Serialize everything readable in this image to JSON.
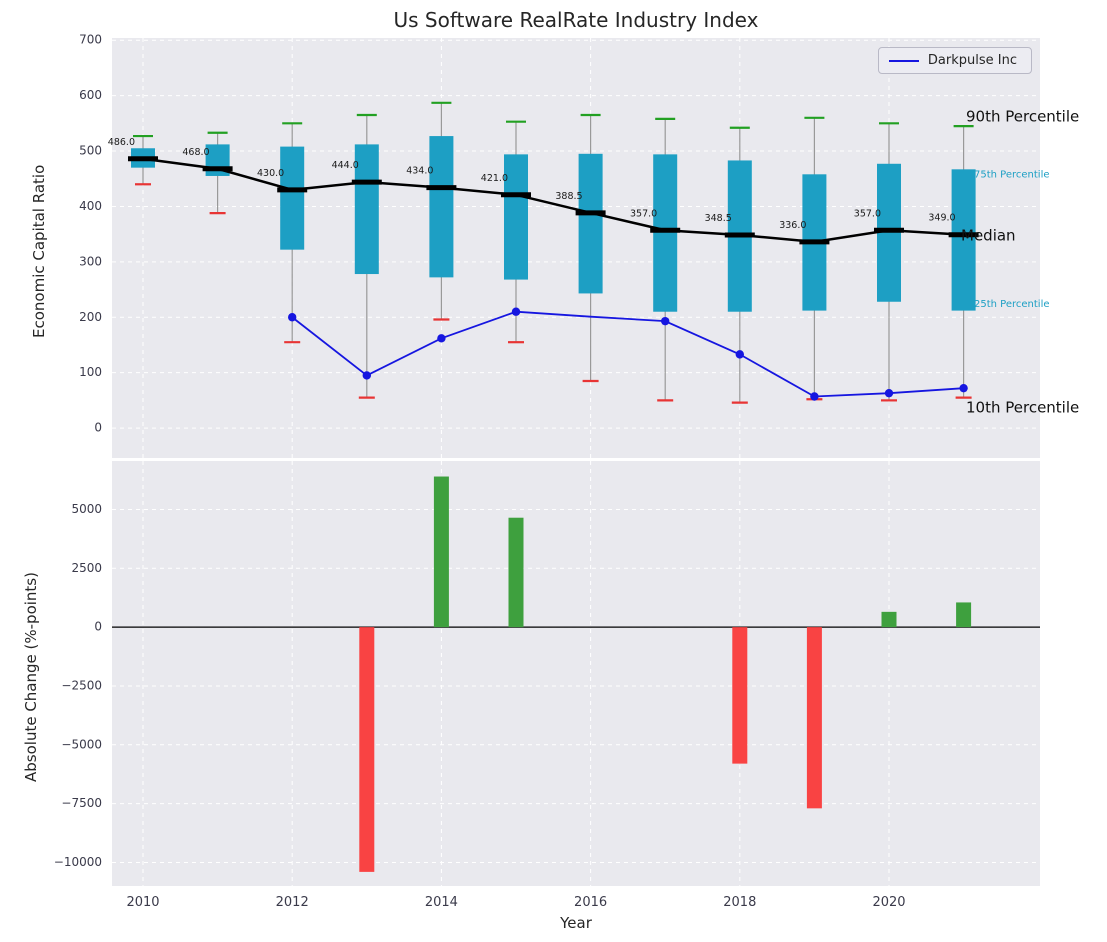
{
  "chart_data": {
    "title": "Us Software RealRate Industry Index",
    "xlabel": "Year",
    "years": [
      2010,
      2011,
      2012,
      2013,
      2014,
      2015,
      2016,
      2017,
      2018,
      2019,
      2020,
      2021
    ],
    "x_ticks": [
      2010,
      2012,
      2014,
      2016,
      2018,
      2020
    ],
    "colors": {
      "panel_bg": "#e9e9ee",
      "grid": "#ffffff",
      "box": "#1d9fc4",
      "p90_cap": "#22a022",
      "p10_cap": "#e83434",
      "median": "#000000",
      "series": "#1616e0",
      "whisker": "#999999",
      "tick": "#3a3a4a",
      "bar_positive": "#3ea03e",
      "bar_negative": "#f94343"
    },
    "legend": {
      "label": "Darkpulse Inc"
    },
    "panels": [
      {
        "type": "boxplot+line",
        "ylabel": "Economic Capital Ratio",
        "ylim": [
          -54,
          704
        ],
        "y_ticks": [
          0,
          100,
          200,
          300,
          400,
          500,
          600,
          700
        ],
        "p10": [
          440,
          388,
          155,
          55,
          196,
          155,
          85,
          50,
          46,
          52,
          50,
          55
        ],
        "p25": [
          470,
          455,
          322,
          278,
          272,
          268,
          243,
          210,
          210,
          212,
          228,
          212
        ],
        "median": [
          486,
          468,
          430,
          444,
          434,
          421,
          388.5,
          357,
          348.5,
          336,
          357,
          349
        ],
        "p75": [
          505,
          512,
          508,
          512,
          527,
          494,
          495,
          494,
          483,
          458,
          477,
          467
        ],
        "p90": [
          527,
          533,
          550,
          565,
          587,
          553,
          565,
          558,
          542,
          560,
          550,
          545
        ],
        "median_labels": [
          "486.0",
          "468.0",
          "430.0",
          "444.0",
          "434.0",
          "421.0",
          "388.5",
          "357.0",
          "348.5",
          "336.0",
          "357.0",
          "349.0"
        ],
        "series": {
          "name": "Darkpulse Inc",
          "years": [
            2012,
            2013,
            2014,
            2015,
            2016,
            2017,
            2018,
            2019,
            2020,
            2021
          ],
          "values": [
            200,
            95,
            162,
            210,
            201,
            193,
            133,
            57,
            63,
            72
          ],
          "markers": [
            true,
            true,
            true,
            true,
            false,
            true,
            true,
            true,
            true,
            true
          ]
        },
        "annotations": [
          {
            "text": "90th Percentile",
            "value": 561,
            "x": 966,
            "color": "#111111",
            "size": 15
          },
          {
            "text": "75th Percentile",
            "value": 458,
            "x": 974,
            "color": "#1d9fc4",
            "size": 10
          },
          {
            "text": "Median",
            "value": 347,
            "x": 961,
            "color": "#111111",
            "size": 15
          },
          {
            "text": "25th Percentile",
            "value": 224,
            "x": 974,
            "color": "#1d9fc4",
            "size": 10
          },
          {
            "text": "10th Percentile",
            "value": 36,
            "x": 966,
            "color": "#111111",
            "size": 15
          }
        ]
      },
      {
        "type": "bar",
        "ylabel": "Absolute Change (%-points)",
        "ylim": [
          -11000,
          7060
        ],
        "y_ticks": [
          5000,
          2500,
          0,
          -2500,
          -5000,
          -7500,
          -10000
        ],
        "values": [
          null,
          null,
          null,
          -10400,
          6400,
          4650,
          null,
          null,
          -5800,
          -7700,
          650,
          1050
        ]
      }
    ]
  }
}
